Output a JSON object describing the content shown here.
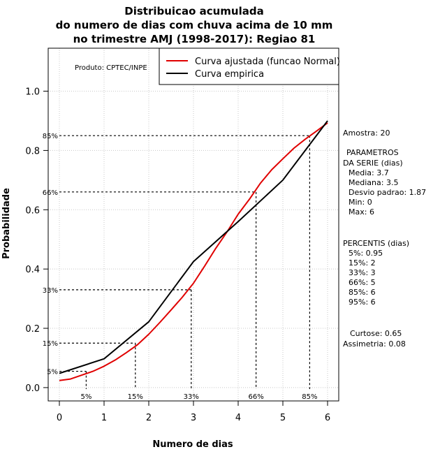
{
  "chart_data": {
    "type": "line",
    "title": [
      "Distribuicao acumulada",
      "do numero de dias com chuva acima de 10 mm",
      "no trimestre AMJ (1998-2017): Regiao 81"
    ],
    "xlabel": "Numero de dias",
    "ylabel": "Probabilidade",
    "xlim": [
      -0.25,
      6.25
    ],
    "ylim": [
      -0.045,
      1.145
    ],
    "x_ticks": [
      0,
      1,
      2,
      3,
      4,
      5,
      6
    ],
    "y_ticks": [
      0.0,
      0.2,
      0.4,
      0.6,
      0.8,
      1.0
    ],
    "y_tick_labels": [
      "0.0",
      "0.2",
      "0.4",
      "0.6",
      "0.8",
      "1.0"
    ],
    "grid": true,
    "legend_position": "top-right",
    "series": [
      {
        "name": "Curva ajustada (funcao Normal)",
        "color": "#e00000",
        "x": [
          0,
          0.25,
          0.5,
          0.75,
          1,
          1.25,
          1.5,
          1.75,
          2,
          2.25,
          2.5,
          2.75,
          3,
          3.25,
          3.5,
          3.75,
          4,
          4.25,
          4.5,
          4.75,
          5,
          5.25,
          5.5,
          5.75,
          6
        ],
        "values": [
          0.024,
          0.029,
          0.042,
          0.055,
          0.072,
          0.093,
          0.118,
          0.145,
          0.18,
          0.22,
          0.262,
          0.305,
          0.352,
          0.41,
          0.47,
          0.525,
          0.585,
          0.635,
          0.69,
          0.735,
          0.772,
          0.808,
          0.838,
          0.865,
          0.893
        ]
      },
      {
        "name": "Curva empirica",
        "color": "#000000",
        "x": [
          0,
          1,
          2,
          3,
          4,
          5,
          6
        ],
        "values": [
          0.048,
          0.097,
          0.222,
          0.425,
          0.56,
          0.7,
          0.9
        ]
      }
    ],
    "percentile_markers": [
      {
        "label": "5%",
        "x": 0.6,
        "y": 0.055
      },
      {
        "label": "15%",
        "x": 1.7,
        "y": 0.15
      },
      {
        "label": "33%",
        "x": 2.95,
        "y": 0.33
      },
      {
        "label": "66%",
        "x": 4.4,
        "y": 0.66
      },
      {
        "label": "85%",
        "x": 5.6,
        "y": 0.85
      }
    ],
    "product_label": "Produto: CPTEC/INPE"
  },
  "stats": {
    "amostra": "Amostra: 20",
    "parametros_title_1": "PARAMETROS",
    "parametros_title_2": "DA SERIE (dias)",
    "media": "Media: 3.7",
    "mediana": "Mediana: 3.5",
    "desvio": "Desvio padrao: 1.87",
    "min": "Min: 0",
    "max": "Max: 6",
    "percentis_title": "PERCENTIS (dias)",
    "p5": "5%: 0.95",
    "p15": "15%: 2",
    "p33": "33%: 3",
    "p66": "66%: 5",
    "p85": "85%: 6",
    "p95": "95%: 6",
    "curtose": "Curtose: 0.65",
    "assimetria": "Assimetria: 0.08"
  }
}
